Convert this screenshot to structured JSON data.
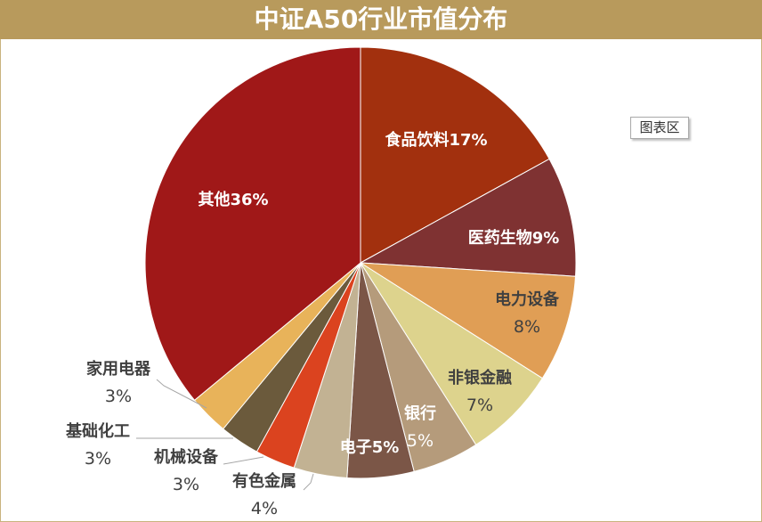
{
  "chart_data": {
    "type": "pie",
    "title": "中证A50行业市值分布",
    "series": [
      {
        "name": "食品饮料",
        "value": 17,
        "label_lines": [
          "食品饮料17%"
        ],
        "color": "#a2300e"
      },
      {
        "name": "医药生物",
        "value": 9,
        "label_lines": [
          "医药生物9%"
        ],
        "color": "#7f3232"
      },
      {
        "name": "电力设备",
        "value": 8,
        "label_lines": [
          "电力设备",
          "8%"
        ],
        "color": "#e09e55"
      },
      {
        "name": "非银金融",
        "value": 7,
        "label_lines": [
          "非银金融",
          "7%"
        ],
        "color": "#ddd38d"
      },
      {
        "name": "银行",
        "value": 5,
        "label_lines": [
          "银行",
          "5%"
        ],
        "color": "#b59b7b"
      },
      {
        "name": "电子",
        "value": 5,
        "label_lines": [
          "电子5%"
        ],
        "color": "#7b5647"
      },
      {
        "name": "有色金属",
        "value": 4,
        "label_lines": [
          "有色金属",
          "4%"
        ],
        "color": "#c2b293"
      },
      {
        "name": "机械设备",
        "value": 3,
        "label_lines": [
          "机械设备",
          "3%"
        ],
        "color": "#db431f"
      },
      {
        "name": "基础化工",
        "value": 3,
        "label_lines": [
          "基础化工",
          "3%"
        ],
        "color": "#6b5a3c"
      },
      {
        "name": "家用电器",
        "value": 3,
        "label_lines": [
          "家用电器",
          "3%"
        ],
        "color": "#e8b35a"
      },
      {
        "name": "其他",
        "value": 36,
        "label_lines": [
          "其他36%"
        ],
        "color": "#a01818"
      }
    ]
  },
  "tooltip": {
    "label": "图表区"
  },
  "colors": {
    "title_bar": "#b89a5c",
    "frame_border": "#c9b37e"
  }
}
